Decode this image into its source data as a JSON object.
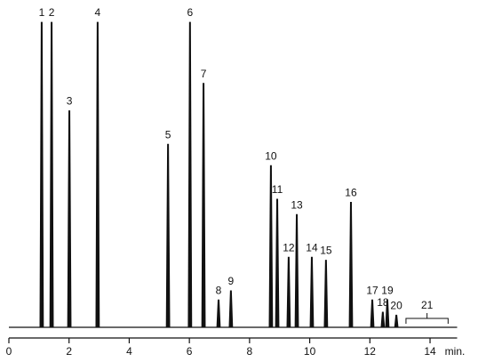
{
  "chart_data": {
    "type": "chromatogram",
    "x_label": "min.",
    "xlim": [
      0,
      14.9
    ],
    "xticks": [
      0,
      2,
      4,
      6,
      8,
      10,
      12,
      14
    ],
    "ylim": [
      0,
      100
    ],
    "color": "#111111",
    "peaks": [
      {
        "label": "1",
        "x": 1.09,
        "height": 100
      },
      {
        "label": "2",
        "x": 1.42,
        "height": 100
      },
      {
        "label": "3",
        "x": 2.01,
        "height": 71
      },
      {
        "label": "4",
        "x": 2.95,
        "height": 100
      },
      {
        "label": "5",
        "x": 5.29,
        "height": 60
      },
      {
        "label": "6",
        "x": 6.02,
        "height": 100
      },
      {
        "label": "7",
        "x": 6.47,
        "height": 80
      },
      {
        "label": "8",
        "x": 6.97,
        "height": 9
      },
      {
        "label": "9",
        "x": 7.38,
        "height": 12
      },
      {
        "label": "10",
        "x": 8.71,
        "height": 53
      },
      {
        "label": "11",
        "x": 8.92,
        "height": 42
      },
      {
        "label": "12",
        "x": 9.3,
        "height": 23
      },
      {
        "label": "13",
        "x": 9.57,
        "height": 37
      },
      {
        "label": "14",
        "x": 10.07,
        "height": 23
      },
      {
        "label": "15",
        "x": 10.54,
        "height": 22
      },
      {
        "label": "16",
        "x": 11.37,
        "height": 41
      },
      {
        "label": "17",
        "x": 12.08,
        "height": 9
      },
      {
        "label": "18",
        "x": 12.43,
        "height": 5
      },
      {
        "label": "19",
        "x": 12.58,
        "height": 9
      },
      {
        "label": "20",
        "x": 12.88,
        "height": 4
      }
    ],
    "group": {
      "label": "21",
      "range": [
        13.2,
        14.6
      ]
    }
  }
}
